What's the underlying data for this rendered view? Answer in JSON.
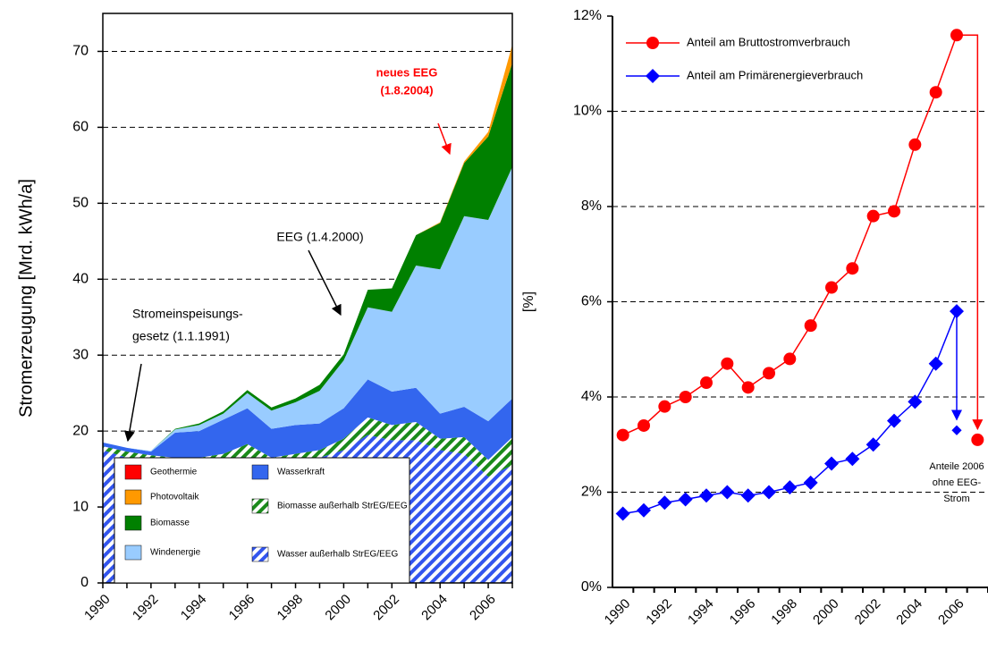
{
  "chart_data": [
    {
      "type": "area",
      "stacked": true,
      "y_label": "Stromerzeugung [Mrd. kWh/a]",
      "x": [
        1990,
        1991,
        1992,
        1993,
        1994,
        1995,
        1996,
        1997,
        1998,
        1999,
        2000,
        2001,
        2002,
        2003,
        2004,
        2005,
        2006,
        2007
      ],
      "xlim": [
        1990,
        2007
      ],
      "xticks": [
        1990,
        1992,
        1994,
        1996,
        1998,
        2000,
        2002,
        2004,
        2006
      ],
      "ylim": [
        0,
        75
      ],
      "yticks": [
        0,
        10,
        20,
        30,
        40,
        50,
        60,
        70
      ],
      "grid": true,
      "legend": "lower left",
      "series": [
        {
          "name": "Wasser außerhalb StrEG/EEG",
          "color": "#3355ee",
          "hatch": true,
          "values": [
            17.5,
            16.5,
            16,
            15.5,
            15.5,
            16,
            16.5,
            15.5,
            16,
            16.5,
            17.5,
            19.5,
            18.8,
            18.8,
            17.5,
            17,
            14,
            15.5
          ]
        },
        {
          "name": "Biomasse außerhalb StrEG/EEG",
          "color": "#1a8a1a",
          "hatch": true,
          "values": [
            0.5,
            0.8,
            0.8,
            1,
            1,
            1,
            1.8,
            1,
            1,
            1,
            1.5,
            2.3,
            2,
            2.4,
            1.5,
            2.2,
            2.2,
            3.7
          ]
        },
        {
          "name": "Wasserkraft",
          "color": "#3366ee",
          "values": [
            0.5,
            0.5,
            0.5,
            3.3,
            3.5,
            4.5,
            4.7,
            3.8,
            3.8,
            3.5,
            4,
            5,
            4.4,
            4.5,
            3.3,
            4,
            5.1,
            5.1
          ]
        },
        {
          "name": "Windenergie",
          "color": "#99ccff",
          "values": [
            0,
            0,
            0.1,
            0.4,
            0.8,
            0.8,
            2,
            2.4,
            3,
            4.3,
            6.3,
            9.5,
            10.5,
            16.1,
            19,
            25.1,
            26.5,
            30.5
          ]
        },
        {
          "name": "Biomasse",
          "color": "#008000",
          "values": [
            0,
            0,
            0,
            0.1,
            0.2,
            0.3,
            0.4,
            0.4,
            0.5,
            0.8,
            0.8,
            2.3,
            3.1,
            4,
            6.1,
            7,
            11,
            13.7
          ]
        },
        {
          "name": "Photovoltaik",
          "color": "#ff9900",
          "values": [
            0,
            0,
            0,
            0,
            0,
            0,
            0,
            0,
            0,
            0,
            0,
            0,
            0,
            0,
            0.1,
            0.2,
            0.6,
            2.4
          ]
        },
        {
          "name": "Geothermie",
          "color": "#ff0000",
          "values": [
            0,
            0,
            0,
            0,
            0,
            0,
            0,
            0,
            0,
            0,
            0,
            0,
            0,
            0,
            0,
            0,
            0,
            0
          ]
        }
      ],
      "annotations": [
        {
          "lines": [
            "neues EEG",
            "(1.8.2004)"
          ],
          "color": "#ff0000",
          "bold": true
        },
        {
          "lines": [
            "EEG (1.4.2000)"
          ],
          "color": "#000000",
          "bold": false
        },
        {
          "lines": [
            "Stromeinspeisungs-",
            "gesetz  (1.1.1991)"
          ],
          "color": "#000000",
          "bold": false
        }
      ]
    },
    {
      "type": "line",
      "y_label": "[%]",
      "categories": [
        "1990",
        "1991",
        "1992",
        "1993",
        "1994",
        "1995",
        "1996",
        "1997",
        "1998",
        "1999",
        "2000",
        "2001",
        "2002",
        "2003",
        "2004",
        "2005",
        "2006",
        null
      ],
      "category_labels_every": 2,
      "ylim": [
        0,
        12
      ],
      "yticks": [
        {
          "value": 0,
          "label": "0%"
        },
        {
          "value": 2,
          "label": "2%"
        },
        {
          "value": 4,
          "label": "4%"
        },
        {
          "value": 6,
          "label": "6%"
        },
        {
          "value": 8,
          "label": "8%"
        },
        {
          "value": 10,
          "label": "10%"
        },
        {
          "value": 12,
          "label": "12%"
        }
      ],
      "grid": true,
      "legend": "upper left",
      "series": [
        {
          "name": "Anteil am Bruttostromverbrauch",
          "color": "#ff0000",
          "marker": "circle",
          "values": [
            3.2,
            3.4,
            3.8,
            4.0,
            4.3,
            4.7,
            4.2,
            4.5,
            4.8,
            5.5,
            6.3,
            6.7,
            7.8,
            7.9,
            9.3,
            10.4,
            11.6,
            null
          ]
        },
        {
          "name": "Anteil am Primärenergieverbrauch",
          "color": "#0000ff",
          "marker": "diamond",
          "values": [
            1.55,
            1.62,
            1.78,
            1.85,
            1.93,
            2.0,
            1.93,
            2.0,
            2.1,
            2.2,
            2.6,
            2.7,
            3.0,
            3.5,
            3.9,
            4.7,
            5.8,
            null
          ]
        }
      ],
      "annotations": [
        {
          "lines": [
            "Anteile 2006",
            "ohne EEG-",
            "Strom"
          ],
          "values": [
            3.1,
            3.3
          ]
        }
      ]
    }
  ]
}
